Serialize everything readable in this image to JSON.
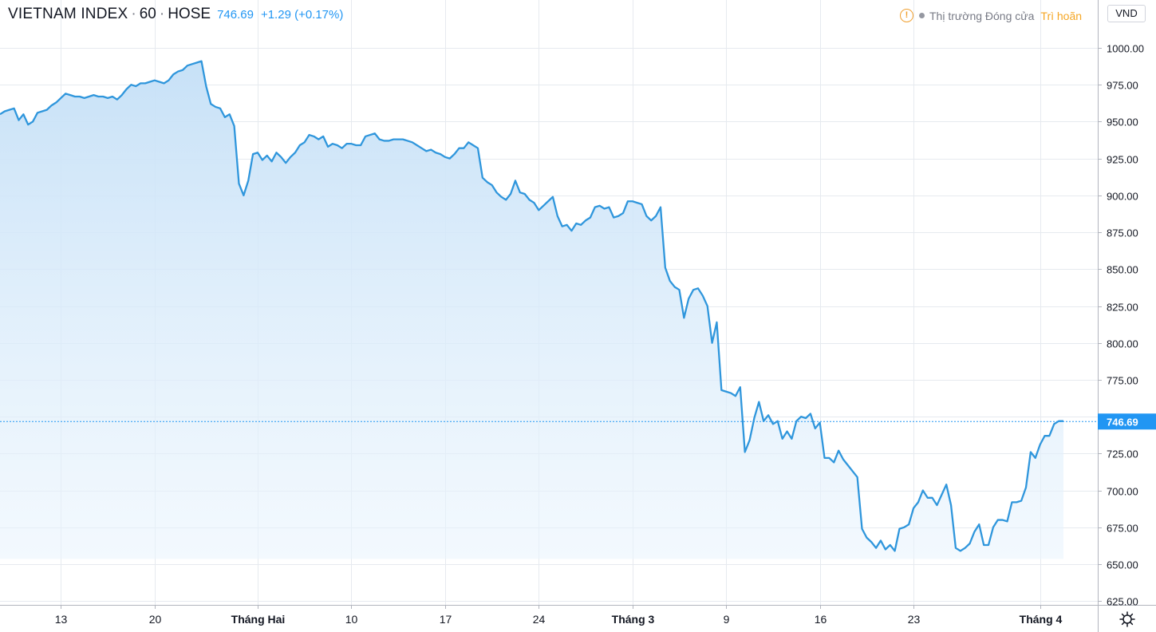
{
  "header": {
    "symbol": "VIETNAM INDEX",
    "interval": "60",
    "exchange": "HOSE",
    "last_price": "746.69",
    "change": "+1.29 (+0.17%)"
  },
  "status": {
    "market_text": "Thị trường Đóng cửa",
    "delay_text": "Trì hoãn"
  },
  "currency": "VND",
  "colors": {
    "line": "#2f96dc",
    "fill": "#cfe6f8",
    "grid": "#e6eaef",
    "last_price_bg": "#2196f3"
  },
  "chart_data": {
    "type": "area",
    "title": "VIETNAM INDEX · 60 · HOSE",
    "last_value": 746.69,
    "ylim": [
      625,
      1015
    ],
    "y_ticks": [
      625,
      650,
      675,
      700,
      725,
      750,
      775,
      800,
      825,
      850,
      875,
      900,
      925,
      950,
      975,
      1000
    ],
    "y_tick_labels": [
      "625.00",
      "650.00",
      "675.00",
      "700.00",
      "725.00",
      "750.00",
      "775.00",
      "800.00",
      "825.00",
      "850.00",
      "875.00",
      "900.00",
      "925.00",
      "950.00",
      "975.00",
      "1000.00"
    ],
    "x_ticks": [
      {
        "label": "13",
        "bold": false,
        "idx": 13
      },
      {
        "label": "20",
        "bold": false,
        "idx": 33
      },
      {
        "label": "Tháng Hai",
        "bold": true,
        "idx": 55
      },
      {
        "label": "10",
        "bold": false,
        "idx": 75
      },
      {
        "label": "17",
        "bold": false,
        "idx": 95
      },
      {
        "label": "24",
        "bold": false,
        "idx": 115
      },
      {
        "label": "Tháng 3",
        "bold": true,
        "idx": 135
      },
      {
        "label": "9",
        "bold": false,
        "idx": 155
      },
      {
        "label": "16",
        "bold": false,
        "idx": 175
      },
      {
        "label": "23",
        "bold": false,
        "idx": 195
      },
      {
        "label": "Tháng 4",
        "bold": true,
        "idx": 222
      }
    ],
    "grid": true,
    "series": [
      {
        "values": [
          955,
          957,
          958,
          959,
          951,
          955,
          948,
          950,
          956,
          957,
          958,
          961,
          963,
          966,
          969,
          968,
          967,
          967,
          966,
          967,
          968,
          967,
          967,
          966,
          967,
          965,
          968,
          972,
          975,
          974,
          976,
          976,
          977,
          978,
          977,
          976,
          978,
          982,
          984,
          985,
          988,
          989,
          990,
          991,
          974,
          962,
          960,
          959,
          953,
          955,
          947,
          908,
          900,
          910,
          928,
          929,
          924,
          927,
          923,
          929,
          926,
          922,
          926,
          929,
          934,
          936,
          941,
          940,
          938,
          940,
          933,
          935,
          934,
          932,
          935,
          935,
          934,
          934,
          940,
          941,
          942,
          938,
          937,
          937,
          938,
          938,
          938,
          937,
          936,
          934,
          932,
          930,
          931,
          929,
          928,
          926,
          925,
          928,
          932,
          932,
          936,
          934,
          932,
          912,
          909,
          907,
          902,
          899,
          897,
          901,
          910,
          902,
          901,
          897,
          895,
          890,
          893,
          896,
          899,
          886,
          879,
          880,
          876,
          881,
          880,
          883,
          885,
          892,
          893,
          891,
          892,
          885,
          886,
          888,
          896,
          896,
          895,
          894,
          886,
          883,
          886,
          892,
          851,
          842,
          838,
          836,
          817,
          830,
          836,
          837,
          832,
          825,
          800,
          814,
          768,
          767,
          766,
          764,
          770,
          726,
          734,
          749,
          760,
          747,
          751,
          745,
          747,
          735,
          740,
          735,
          747,
          750,
          749,
          752,
          742,
          746,
          722,
          722,
          719,
          727,
          721,
          717,
          713,
          709,
          674,
          668,
          665,
          661,
          666,
          660,
          663,
          659,
          674,
          675,
          677,
          688,
          692,
          700,
          695,
          695,
          690,
          697,
          704,
          690,
          661,
          659,
          661,
          664,
          672,
          677,
          663,
          663,
          675,
          680,
          680,
          679,
          692,
          692,
          693,
          702,
          726,
          722,
          731,
          737,
          737,
          745,
          747,
          747
        ]
      }
    ]
  }
}
